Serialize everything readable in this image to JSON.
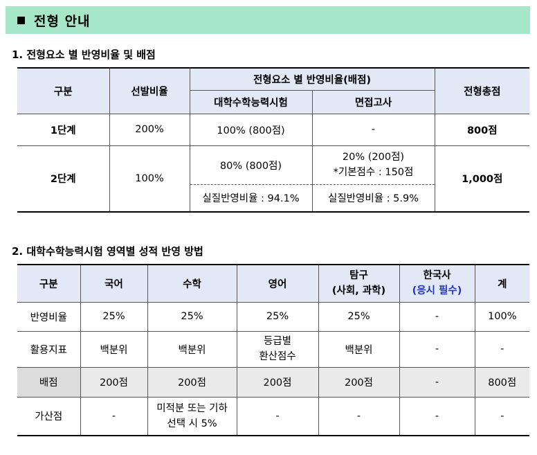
{
  "banner": {
    "title": "전형 안내"
  },
  "section1": {
    "title": "1. 전형요소 별 반영비율 및 배점",
    "headers": {
      "category": "구분",
      "selection_ratio": "선발비율",
      "element_ratio": "전형요소 별 반영비율(배점)",
      "csat": "대학수학능력시험",
      "interview": "면접고사",
      "total": "전형총점"
    },
    "rows": [
      {
        "stage": "1단계",
        "ratio": "200%",
        "csat": "100% (800점)",
        "interview": "-",
        "total": "800점"
      },
      {
        "stage": "2단계",
        "ratio": "100%",
        "csat": "80% (800점)",
        "interview_line1": "20% (200점)",
        "interview_line2": "*기본점수 : 150점",
        "csat_actual": "실질반영비율 : 94.1%",
        "interview_actual": "실질반영비율 : 5.9%",
        "total": "1,000점"
      }
    ]
  },
  "section2": {
    "title": "2. 대학수학능력시험 영역별 성적 반영 방법",
    "headers": {
      "category": "구분",
      "korean": "국어",
      "math": "수학",
      "english": "영어",
      "inquiry_line1": "탐구",
      "inquiry_line2": "(사회, 과학)",
      "history_line1": "한국사",
      "history_line2": "(응시 필수)",
      "sum": "계"
    },
    "rows": {
      "ratio": {
        "label": "반영비율",
        "korean": "25%",
        "math": "25%",
        "english": "25%",
        "inquiry": "25%",
        "history": "-",
        "sum": "100%"
      },
      "index": {
        "label": "활용지표",
        "korean": "백분위",
        "math": "백분위",
        "english_line1": "등급별",
        "english_line2": "환산점수",
        "inquiry": "백분위",
        "history": "-",
        "sum": "-"
      },
      "score": {
        "label": "배점",
        "korean": "200점",
        "math": "200점",
        "english": "200점",
        "inquiry": "200점",
        "history": "-",
        "sum": "800점"
      },
      "bonus": {
        "label": "가산점",
        "korean": "-",
        "math_line1": "미적분 또는 기하",
        "math_line2": "선택 시 5%",
        "english": "-",
        "inquiry": "-",
        "history": "-",
        "sum": "-"
      }
    }
  },
  "colors": {
    "banner": "#a6e7c7",
    "header_bg": "#e3e8f7",
    "accent_blue": "#1f33c8"
  }
}
